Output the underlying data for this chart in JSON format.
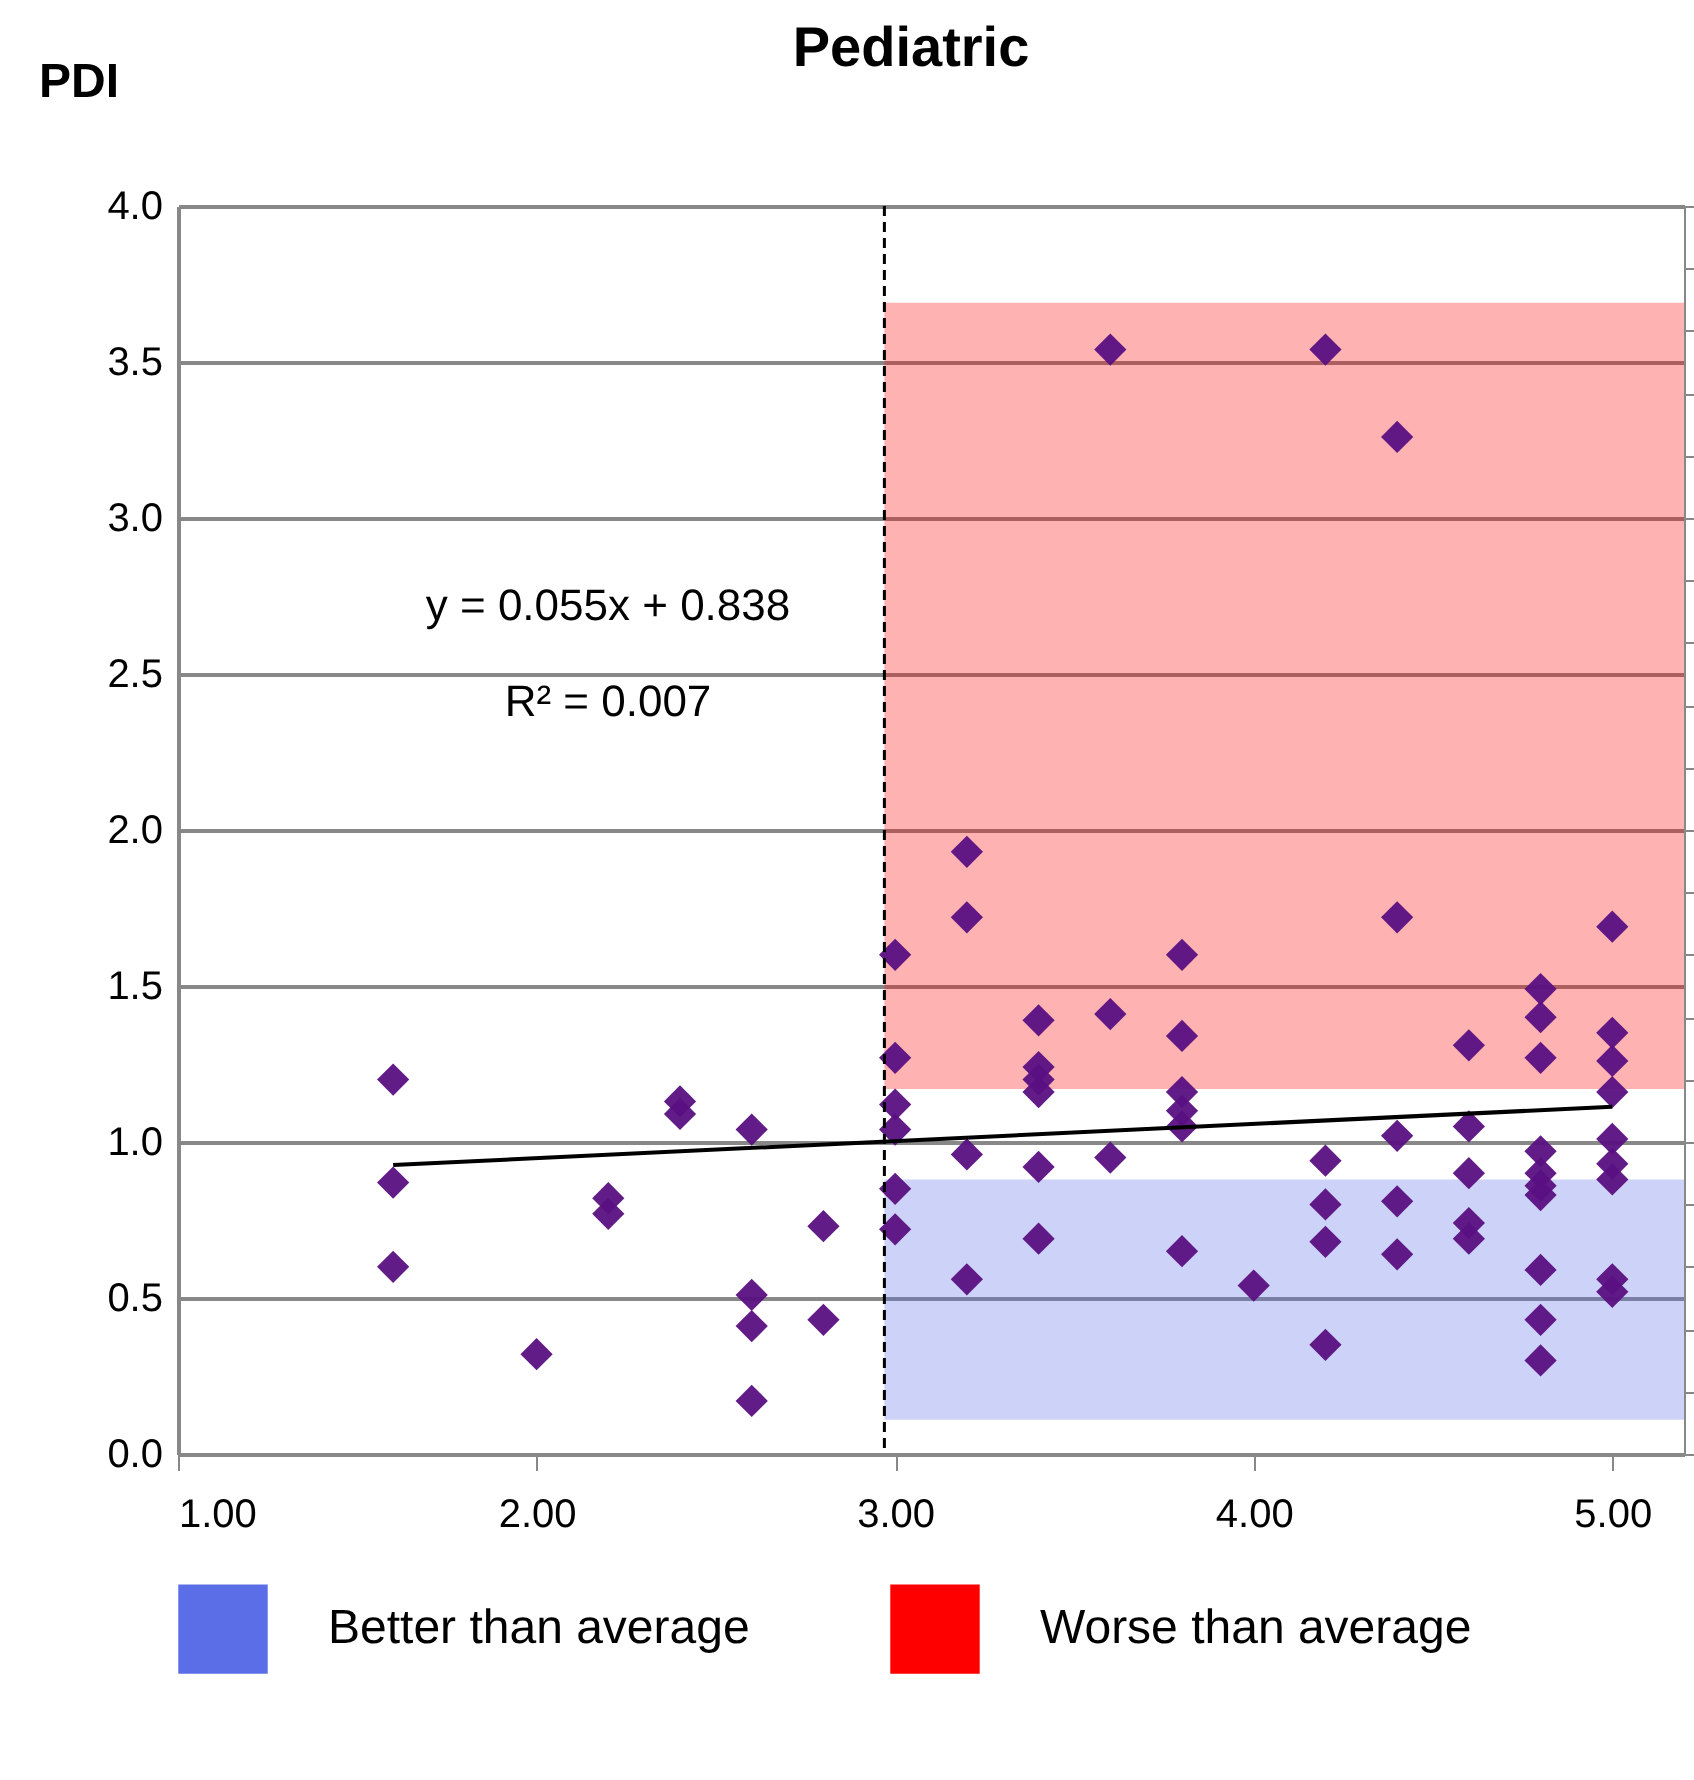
{
  "chart_data": {
    "type": "scatter",
    "title": "Pediatric",
    "ylabel": "PDI",
    "series": [
      {
        "color": "#5a1082",
        "x": [
          1.6,
          1.6,
          1.6,
          2.0,
          2.2,
          2.2,
          2.4,
          2.4,
          2.6,
          2.6,
          2.6,
          2.6,
          2.8,
          2.8,
          3.0,
          3.0,
          3.0,
          3.0,
          3.0,
          3.0,
          3.2,
          3.2,
          3.2,
          3.2,
          3.4,
          3.4,
          3.4,
          3.4,
          3.4,
          3.4,
          3.6,
          3.6,
          3.6,
          3.8,
          3.8,
          3.8,
          3.8,
          3.8,
          3.8,
          4.0,
          4.2,
          4.2,
          4.2,
          4.2,
          4.2,
          4.4,
          4.4,
          4.4,
          4.4,
          4.4,
          4.6,
          4.6,
          4.6,
          4.6,
          4.6,
          4.8,
          4.8,
          4.8,
          4.8,
          4.8,
          4.8,
          4.8,
          4.8,
          4.8,
          4.8,
          5.0,
          5.0,
          5.0,
          5.0,
          5.0,
          5.0,
          5.0,
          5.0,
          5.0
        ],
        "values": [
          1.2,
          0.87,
          0.6,
          0.32,
          0.82,
          0.77,
          1.13,
          1.09,
          1.04,
          0.51,
          0.41,
          0.17,
          0.73,
          0.43,
          1.6,
          1.27,
          1.12,
          1.04,
          0.85,
          0.72,
          1.93,
          1.72,
          0.96,
          0.56,
          1.39,
          1.24,
          1.2,
          1.16,
          0.92,
          0.69,
          3.54,
          1.41,
          0.95,
          1.6,
          1.34,
          1.16,
          1.1,
          1.05,
          0.65,
          0.54,
          3.54,
          0.94,
          0.8,
          0.68,
          0.35,
          3.26,
          1.72,
          1.02,
          0.81,
          0.64,
          1.31,
          1.05,
          0.9,
          0.74,
          0.69,
          1.49,
          1.4,
          1.27,
          0.97,
          0.9,
          0.86,
          0.83,
          0.59,
          0.43,
          0.3,
          1.69,
          1.35,
          1.26,
          1.16,
          1.01,
          0.93,
          0.88,
          0.56,
          0.52
        ]
      },
      {
        "type": "line",
        "color": "#000000",
        "marker": "none",
        "x": [
          1.6,
          5.0
        ],
        "values": [
          0.926,
          1.113
        ]
      }
    ],
    "xlim": [
      1,
      5.2
    ],
    "ylim": [
      0,
      4
    ],
    "xticks": [
      {
        "value": 1,
        "label": "1.00"
      },
      {
        "value": 2,
        "label": "2.00"
      },
      {
        "value": 3,
        "label": "3.00"
      },
      {
        "value": 4,
        "label": "4.00"
      },
      {
        "value": 5,
        "label": "5.00"
      }
    ],
    "yticks": [
      {
        "value": 0,
        "label": "0.0"
      },
      {
        "value": 0.5,
        "label": "0.5"
      },
      {
        "value": 1,
        "label": "1.0"
      },
      {
        "value": 1.5,
        "label": "1.5"
      },
      {
        "value": 2,
        "label": "2.0"
      },
      {
        "value": 2.5,
        "label": "2.5"
      },
      {
        "value": 3,
        "label": "3.0"
      },
      {
        "value": 3.5,
        "label": "3.5"
      },
      {
        "value": 4,
        "label": "4.0"
      }
    ],
    "ref_lines": [
      {
        "axis": "x",
        "value": 2.97,
        "color": "#000000",
        "line_style": "dashed"
      }
    ],
    "bands": [
      {
        "axis": "y",
        "from": 0.11,
        "to": 0.88,
        "label": "Better than average",
        "color": "#5b6ee8"
      },
      {
        "axis": "y",
        "from": 1.17,
        "to": 3.69,
        "label": "Worse than average",
        "color": "#ff0000"
      }
    ],
    "annotations": [
      "y = 0.055x + 0.838",
      "R² = 0.007"
    ],
    "grid": "y",
    "legend": "bottom",
    "marker": "diamond"
  }
}
